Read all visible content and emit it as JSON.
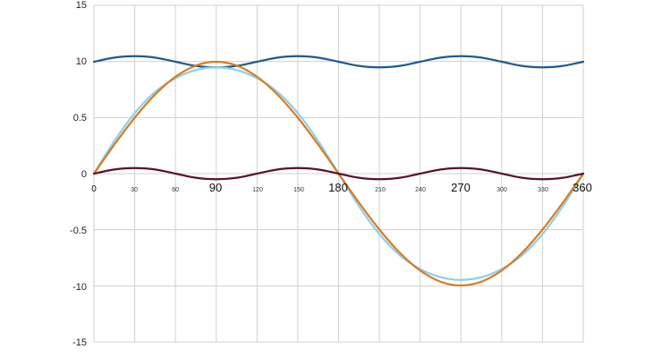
{
  "chart_data": {
    "type": "line",
    "title": "",
    "xlabel": "",
    "ylabel": "",
    "xlim": [
      0,
      360
    ],
    "y_tick_labels": [
      "15",
      "10",
      "0.5",
      "0",
      "-0.5",
      "-10",
      "-15"
    ],
    "x_tick_labels_small": [
      "30",
      "60",
      "120",
      "150",
      "210",
      "240",
      "300",
      "330"
    ],
    "x_tick_labels_large": [
      "0",
      "90",
      "180",
      "270",
      "360"
    ],
    "grid": true,
    "legend": "none",
    "series": [
      {
        "color": "#1f5a91",
        "x": [
          0,
          15,
          30,
          45,
          60,
          75,
          90,
          105,
          120,
          135,
          150,
          165,
          180,
          195,
          210,
          225,
          240,
          255,
          270,
          285,
          300,
          315,
          330,
          345,
          360
        ],
        "y": [
          1.0,
          1.037,
          1.05,
          1.037,
          1.0,
          0.963,
          0.95,
          0.963,
          1.0,
          1.037,
          1.05,
          1.037,
          1.0,
          0.963,
          0.95,
          0.963,
          1.0,
          1.037,
          1.05,
          1.037,
          1.0,
          0.963,
          0.95,
          0.963,
          1.0
        ]
      },
      {
        "color": "#8fd0ea",
        "x": [
          0,
          15,
          30,
          45,
          60,
          75,
          90,
          105,
          120,
          135,
          150,
          165,
          180,
          195,
          210,
          225,
          240,
          255,
          270,
          285,
          300,
          315,
          330,
          345,
          360
        ],
        "y": [
          0.0,
          0.291,
          0.541,
          0.73,
          0.853,
          0.926,
          0.95,
          0.926,
          0.853,
          0.73,
          0.541,
          0.291,
          0.0,
          -0.291,
          -0.541,
          -0.73,
          -0.853,
          -0.926,
          -0.95,
          -0.926,
          -0.853,
          -0.73,
          -0.541,
          -0.291,
          0.0
        ]
      },
      {
        "color": "#d97b1e",
        "x": [
          0,
          15,
          30,
          45,
          60,
          75,
          90,
          105,
          120,
          135,
          150,
          165,
          180,
          195,
          210,
          225,
          240,
          255,
          270,
          285,
          300,
          315,
          330,
          345,
          360
        ],
        "y": [
          0.0,
          0.259,
          0.5,
          0.707,
          0.866,
          0.966,
          1.0,
          0.966,
          0.866,
          0.707,
          0.5,
          0.259,
          0.0,
          -0.259,
          -0.5,
          -0.707,
          -0.866,
          -0.966,
          -1.0,
          -0.966,
          -0.866,
          -0.707,
          -0.5,
          -0.259,
          0.0
        ]
      },
      {
        "color": "#5a1030",
        "x": [
          0,
          15,
          30,
          45,
          60,
          75,
          90,
          105,
          120,
          135,
          150,
          165,
          180,
          195,
          210,
          225,
          240,
          255,
          270,
          285,
          300,
          315,
          330,
          345,
          360
        ],
        "y": [
          0.0,
          0.037,
          0.05,
          0.037,
          0.0,
          -0.037,
          -0.05,
          -0.037,
          0.0,
          0.037,
          0.05,
          0.037,
          0.0,
          -0.037,
          -0.05,
          -0.037,
          0.0,
          0.037,
          0.05,
          0.037,
          0.0,
          -0.037,
          -0.05,
          -0.037,
          0.0
        ]
      }
    ]
  }
}
